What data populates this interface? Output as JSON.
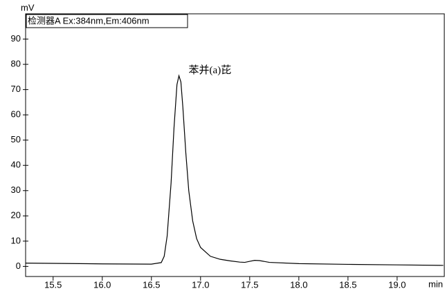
{
  "chart_data": {
    "type": "line",
    "y_label": "mV",
    "x_label": "min",
    "annotation": "苯并(a)芘",
    "xlim": [
      15.22,
      19.48
    ],
    "ylim": [
      -4,
      100
    ],
    "xticks": [
      {
        "value": 15.5,
        "label": "15.5"
      },
      {
        "value": 16,
        "label": "16.0"
      },
      {
        "value": 16.5,
        "label": "16.5"
      },
      {
        "value": 17,
        "label": "17.0"
      },
      {
        "value": 17.5,
        "label": "17.5"
      },
      {
        "value": 18,
        "label": "18.0"
      },
      {
        "value": 18.5,
        "label": "18.5"
      },
      {
        "value": 19,
        "label": "19.0"
      }
    ],
    "yticks": [
      0,
      10,
      20,
      30,
      40,
      50,
      60,
      70,
      80,
      90
    ],
    "x": [
      15.22,
      15.5,
      16.0,
      16.5,
      16.6,
      16.63,
      16.66,
      16.7,
      16.73,
      16.76,
      16.78,
      16.8,
      16.82,
      16.85,
      16.88,
      16.92,
      16.96,
      17.0,
      17.1,
      17.2,
      17.3,
      17.4,
      17.45,
      17.5,
      17.55,
      17.6,
      17.7,
      18.0,
      18.5,
      19.0,
      19.47
    ],
    "series": [
      {
        "name": "检测器A Ex:384nm,Em:406nm",
        "color": "#000000",
        "values": [
          1.3,
          1.2,
          1.0,
          0.9,
          1.5,
          4,
          12,
          33,
          55,
          72,
          75.5,
          73,
          63,
          45,
          30,
          18,
          11,
          7.5,
          4,
          2.8,
          2.2,
          1.7,
          1.6,
          2.0,
          2.4,
          2.3,
          1.6,
          1.1,
          0.8,
          0.6,
          0.4
        ]
      }
    ]
  }
}
